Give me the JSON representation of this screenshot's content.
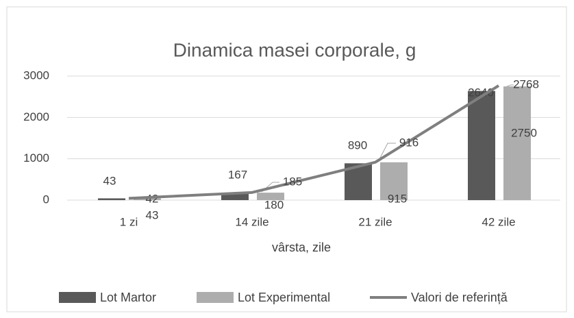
{
  "chart_data": {
    "type": "bar_line",
    "title": "Dinamica masei corporale, g",
    "x_label": "vârsta, zile",
    "categories": [
      "1 zi",
      "14 zile",
      "21 zile",
      "42 zile"
    ],
    "series": [
      {
        "name": "Lot Martor",
        "type": "bar",
        "color": "#595959",
        "values": [
          43,
          167,
          890,
          2640
        ]
      },
      {
        "name": "Lot Experimental",
        "type": "bar",
        "color": "#adadad",
        "values": [
          42,
          180,
          915,
          2750
        ]
      },
      {
        "name": "Valori de referință",
        "type": "line",
        "color": "#7f7f7f",
        "values": [
          43,
          185,
          916,
          2768
        ]
      }
    ],
    "ylim": [
      0,
      3000
    ],
    "yticks": [
      0,
      1000,
      2000,
      3000
    ],
    "grid": true,
    "legend": "bottom"
  }
}
